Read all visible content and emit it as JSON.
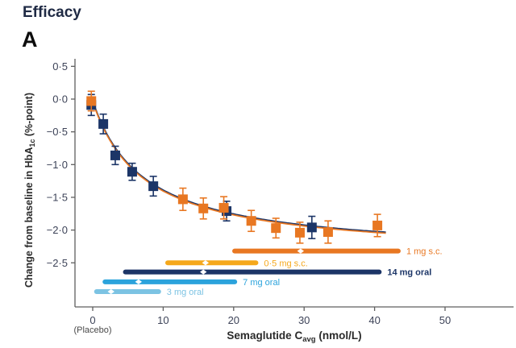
{
  "header": {
    "title": "Efficacy",
    "panel": "A"
  },
  "chart_data": {
    "type": "scatter",
    "title": "Efficacy",
    "panel": "A",
    "xlabel": {
      "main": "Semaglutide C",
      "sub": "avg",
      "unit": " (nmol/L)"
    },
    "ylabel": {
      "main": "Change from baseline in HbA",
      "sub": "1c",
      "unit": " (%-point)"
    },
    "x_ticks": [
      0,
      10,
      20,
      30,
      40,
      50
    ],
    "x_tick_labels": [
      "0",
      "10",
      "20",
      "30",
      "40",
      "50"
    ],
    "placebo_note": "(Placebo)",
    "y_ticks": [
      0.5,
      0.0,
      -0.5,
      -1.0,
      -1.5,
      -2.0,
      -2.5
    ],
    "y_tick_labels": [
      "0·5",
      "0·0",
      "−0·5",
      "−1·0",
      "−1·5",
      "−2·0",
      "−2·5"
    ],
    "xlim": [
      -2.5,
      59.5
    ],
    "ylim": [
      -3.2,
      0.6
    ],
    "colors": {
      "orange_sc": "#E87722",
      "navy_oral": "#1C3567",
      "amber_sc05": "#F5A81C",
      "blue_7mg": "#2BA3DC",
      "lightblue_3mg": "#7CC3E3",
      "axis": "#5f5f5f",
      "tick_text": "#3d4358",
      "axis_label_text": "#2b2b2b",
      "placebo_text": "#4a4a4a"
    },
    "series": [
      {
        "name": "navy-squares-oral",
        "color": "#1C3567",
        "points": [
          {
            "x": -0.2,
            "y": -0.09,
            "err": 0.16
          },
          {
            "x": 1.5,
            "y": -0.38,
            "err": 0.15
          },
          {
            "x": 3.2,
            "y": -0.86,
            "err": 0.14
          },
          {
            "x": 5.6,
            "y": -1.11,
            "err": 0.13
          },
          {
            "x": 8.6,
            "y": -1.33,
            "err": 0.15
          },
          {
            "x": 19.0,
            "y": -1.71,
            "err": 0.15
          },
          {
            "x": 31.1,
            "y": -1.96,
            "err": 0.17
          }
        ]
      },
      {
        "name": "orange-squares-sc",
        "color": "#E87722",
        "points": [
          {
            "x": -0.2,
            "y": -0.03,
            "err": 0.15
          },
          {
            "x": 12.8,
            "y": -1.53,
            "err": 0.17
          },
          {
            "x": 15.7,
            "y": -1.67,
            "err": 0.16
          },
          {
            "x": 18.6,
            "y": -1.66,
            "err": 0.17
          },
          {
            "x": 22.5,
            "y": -1.86,
            "err": 0.16
          },
          {
            "x": 26.0,
            "y": -1.97,
            "err": 0.15
          },
          {
            "x": 29.4,
            "y": -2.04,
            "err": 0.16
          },
          {
            "x": 33.4,
            "y": -2.03,
            "err": 0.17
          },
          {
            "x": 40.4,
            "y": -1.93,
            "err": 0.17
          }
        ]
      }
    ],
    "fit_curve": {
      "e0": -0.04,
      "emax": 2.36,
      "ec50": 7.3,
      "x_start": 0,
      "x_end": 41.9,
      "colors": [
        "#1C3567",
        "#E87722"
      ]
    },
    "dose_bars": [
      {
        "label": "1 mg s.c.",
        "color": "#E87722",
        "label_color": "#E87722",
        "bold": false,
        "from": 19.8,
        "to": 43.7,
        "median": 29.5,
        "y": -2.32
      },
      {
        "label": "0·5 mg s.c.",
        "color": "#F5A81C",
        "label_color": "#F5A81C",
        "bold": false,
        "from": 10.3,
        "to": 23.5,
        "median": 16.0,
        "y": -2.5
      },
      {
        "label": "14 mg oral",
        "color": "#1C3567",
        "label_color": "#1C3567",
        "bold": true,
        "from": 4.3,
        "to": 41.0,
        "median": 15.7,
        "y": -2.64
      },
      {
        "label": "7 mg oral",
        "color": "#2BA3DC",
        "label_color": "#2BA3DC",
        "bold": false,
        "from": 1.4,
        "to": 20.5,
        "median": 6.5,
        "y": -2.79
      },
      {
        "label": "3 mg oral",
        "color": "#7CC3E3",
        "label_color": "#7CC3E3",
        "bold": false,
        "from": 0.2,
        "to": 9.7,
        "median": 2.6,
        "y": -2.94
      }
    ]
  }
}
